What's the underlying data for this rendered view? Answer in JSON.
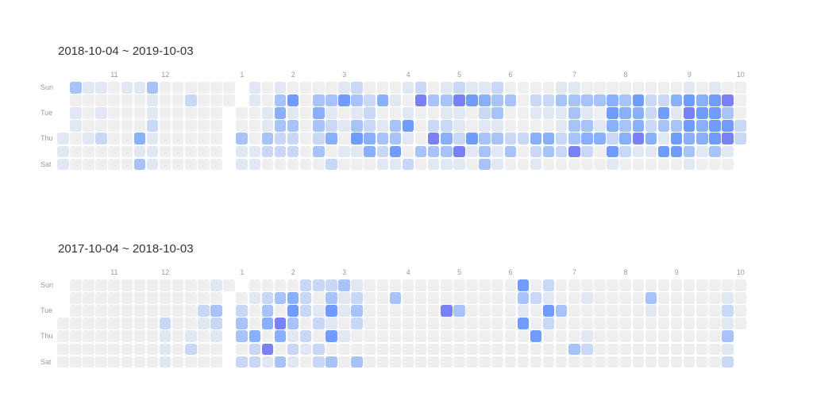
{
  "chart_data": [
    {
      "type": "heatmap",
      "title": "2018-10-04 ~ 2019-10-03",
      "row_labels": [
        "Sun",
        "Tue",
        "Thu",
        "Sat"
      ],
      "month_labels": [
        "11",
        "12",
        "1",
        "2",
        "3",
        "4",
        "5",
        "6",
        "7",
        "8",
        "9",
        "10"
      ],
      "level_scale": [
        0,
        6
      ],
      "levels_by_week": [
        "111",
        "3011000",
        "1000100",
        "1010200",
        "0000000",
        "1000000",
        "1000413",
        "3112111",
        "0000000",
        "0000000",
        "0200000",
        "0000000",
        "0000000",
        "00",
        "00311",
        "1100011",
        "0011320",
        "1343220",
        "0513220",
        "0000000",
        "0343230",
        "0312402",
        "1501010",
        "2313510",
        "0222440",
        "0401321",
        "0103351",
        "1015102",
        "2600030",
        "0302631",
        "1312431",
        "2611261",
        "1500510",
        "1421333",
        "2331311",
        "0300230",
        "0000200",
        "0210421",
        "0210430",
        "1311220",
        "1333360",
        "0313420",
        "0301400",
        "0454251",
        "0343420",
        "0544610",
        "0222410",
        "0253150",
        "0413550",
        "1565431",
        "0454410",
        "1555530",
        "0635610",
        "00022"
      ]
    },
    {
      "type": "heatmap",
      "title": "2017-10-04 ~ 2018-10-03",
      "row_labels": [
        "Sun",
        "Tue",
        "Thu",
        "Sat"
      ],
      "month_labels": [
        "11",
        "12",
        "1",
        "2",
        "3",
        "4",
        "5",
        "6",
        "7",
        "8",
        "9",
        "10"
      ],
      "level_scale": [
        0,
        6
      ],
      "levels_by_week": [
        "0000",
        "0000000",
        "0000000",
        "0000000",
        "0000000",
        "0000000",
        "0000000",
        "0000000",
        "0002111",
        "0000000",
        "0000120",
        "0021000",
        "1032100",
        "0",
        "023302",
        "0100422",
        "0234061",
        "0306403",
        "0453121",
        "2220210",
        "2012022",
        "2351503",
        "3110100",
        "1232003",
        "0000000",
        "0000000",
        "0300000",
        "0000000",
        "0000000",
        "0000000",
        "0060000",
        "0030000",
        "0000000",
        "0000000",
        "0000000",
        "0000000",
        "5315000",
        "0200500",
        "2152000",
        "0030000",
        "0000030",
        "0100120",
        "0000000",
        "0000000",
        "0000000",
        "0000000",
        "0310000",
        "0000000",
        "0000000",
        "0000000",
        "0000000",
        "0000000",
        "0121312",
        "0000"
      ]
    }
  ],
  "level_colors": [
    "#efefef",
    "#e1e7f3",
    "#c8d8f6",
    "#a8c3f9",
    "#89b0fc",
    "#6f9cfe",
    "#7a80f9"
  ]
}
